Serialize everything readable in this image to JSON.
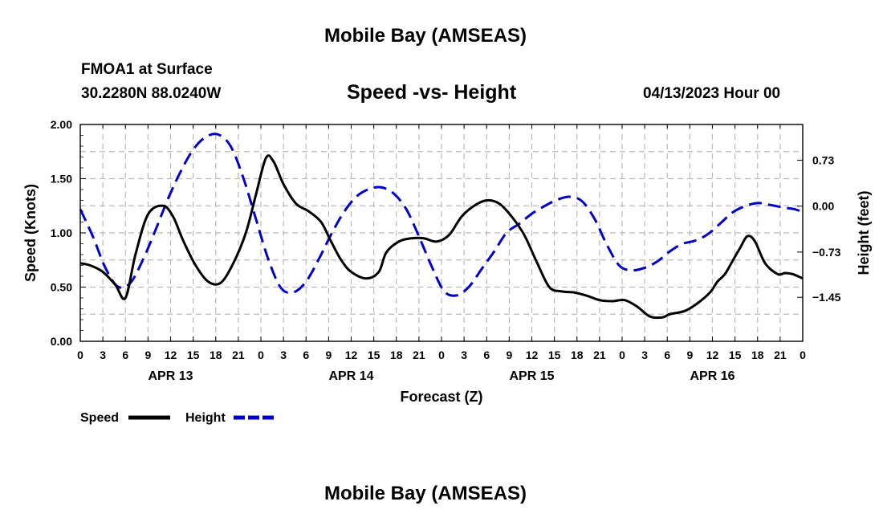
{
  "header": {
    "title": "Mobile Bay (AMSEAS)",
    "station": "FMOA1 at Surface",
    "coords": "30.2280N  88.0240W",
    "chart_title": "Speed -vs- Height",
    "datetime": "04/13/2023 Hour 00"
  },
  "footer": {
    "title": "Mobile Bay (AMSEAS)"
  },
  "colors": {
    "speed": "#000000",
    "height": "#0000cc",
    "grid": "#bbbbbb"
  },
  "chart_data": {
    "type": "line",
    "title": "Speed -vs- Height",
    "xlabel": "Forecast (Z)",
    "ylabel": "Speed (Knots)",
    "y2label": "Height (feet)",
    "xlim": [
      0,
      72
    ],
    "ylim": [
      0,
      2
    ],
    "y2lim": [
      -2.15,
      1.3
    ],
    "x_tick_labels": [
      "0",
      "3",
      "6",
      "9",
      "12",
      "15",
      "18",
      "21",
      "0",
      "3",
      "6",
      "9",
      "12",
      "15",
      "18",
      "21",
      "0",
      "3",
      "6",
      "9",
      "12",
      "15",
      "18",
      "21",
      "0",
      "3",
      "6",
      "9",
      "12",
      "15",
      "18",
      "21",
      "0"
    ],
    "x_tick_step": 2.25,
    "y_ticks": [
      0,
      0.5,
      1.0,
      1.5,
      2.0
    ],
    "y_tick_labels": [
      "0.00",
      "0.50",
      "1.00",
      "1.50",
      "2.00"
    ],
    "y2_ticks": [
      -1.45,
      -0.73,
      0.0,
      0.73
    ],
    "y2_tick_labels": [
      "−1.45",
      "−0.73",
      "0.00",
      "0.73"
    ],
    "date_labels": [
      {
        "label": "APR 13",
        "x": 9
      },
      {
        "label": "APR 14",
        "x": 27
      },
      {
        "label": "APR 15",
        "x": 45
      },
      {
        "label": "APR 16",
        "x": 63
      }
    ],
    "legend": [
      {
        "name": "Speed",
        "style": "solid"
      },
      {
        "name": "Height",
        "style": "dashed"
      }
    ],
    "series": [
      {
        "name": "Speed",
        "axis": "left",
        "unit": "knots",
        "x": [
          0,
          1,
          2.25,
          3.5,
          4.5,
          5.5,
          6.75,
          8.25,
          9.25,
          10.25,
          11.5,
          12.75,
          14,
          15.25,
          16.5,
          17.5,
          18.5,
          19.25,
          20.25,
          21.5,
          22.75,
          24,
          25,
          26,
          27,
          28.5,
          29.75,
          30.5,
          31.75,
          33,
          34.25,
          35.5,
          36.75,
          38,
          39.25,
          40.5,
          41.75,
          43,
          44.25,
          45.5,
          46.75,
          48,
          49.25,
          50.5,
          51.75,
          53,
          54.25,
          55.5,
          56.75,
          58,
          59.25,
          60.5,
          61.75,
          62.75,
          63.5,
          64.25,
          65,
          65.75,
          66.5,
          67.5,
          68.25,
          69.5,
          70.5,
          71.25,
          72
        ],
        "values": [
          0.72,
          0.7,
          0.64,
          0.52,
          0.4,
          0.8,
          1.17,
          1.25,
          1.15,
          0.93,
          0.7,
          0.55,
          0.54,
          0.72,
          1.0,
          1.35,
          1.69,
          1.66,
          1.45,
          1.27,
          1.2,
          1.1,
          0.92,
          0.75,
          0.64,
          0.58,
          0.64,
          0.82,
          0.92,
          0.95,
          0.95,
          0.92,
          0.98,
          1.15,
          1.25,
          1.3,
          1.27,
          1.15,
          0.98,
          0.73,
          0.5,
          0.46,
          0.45,
          0.42,
          0.38,
          0.37,
          0.38,
          0.32,
          0.23,
          0.22,
          0.26,
          0.3,
          0.37,
          0.47,
          0.55,
          0.62,
          0.75,
          0.9,
          0.98,
          0.92,
          0.72,
          0.62,
          0.62,
          0.64,
          0.6
        ],
        "tail_x": [
          58.75,
          60.25,
          61.5,
          62.75,
          63.5,
          64.25,
          65,
          65.75,
          66.5,
          67.25,
          68.25,
          69.5,
          70.25,
          71,
          72
        ],
        "tail_values": [
          0.25,
          0.28,
          0.35,
          0.45,
          0.55,
          0.62,
          0.74,
          0.86,
          0.97,
          0.92,
          0.72,
          0.62,
          0.63,
          0.62,
          0.58
        ]
      },
      {
        "name": "Height",
        "axis": "right",
        "unit": "feet",
        "x": [
          0,
          1.25,
          2.5,
          3.75,
          5,
          6.25,
          7.5,
          8.75,
          10,
          11.25,
          12.5,
          13.75,
          15,
          16.25,
          17.5,
          18.75,
          20,
          21.25,
          22.5,
          23.75,
          25,
          26.25,
          27.5,
          28.75,
          30,
          31.25,
          32.5,
          33.75,
          35,
          36.25,
          37.5,
          38.75,
          40,
          41.25,
          42.5,
          43.75,
          45,
          46.25,
          47.5,
          48.75,
          50,
          51.25,
          52.5,
          53.75,
          55,
          56.25,
          57.5,
          58.75,
          60,
          61.25,
          62.5,
          63.75,
          65,
          66.25,
          67.5,
          68.75,
          70,
          71.25,
          72
        ],
        "values": [
          -0.05,
          -0.48,
          -0.98,
          -1.28,
          -1.22,
          -0.85,
          -0.38,
          0.12,
          0.55,
          0.9,
          1.1,
          1.14,
          0.95,
          0.45,
          -0.2,
          -0.85,
          -1.3,
          -1.37,
          -1.2,
          -0.85,
          -0.45,
          -0.1,
          0.15,
          0.27,
          0.3,
          0.2,
          -0.05,
          -0.48,
          -0.95,
          -1.35,
          -1.42,
          -1.28,
          -1.0,
          -0.72,
          -0.42,
          -0.28,
          -0.12,
          0.0,
          0.1,
          0.15,
          0.08,
          -0.2,
          -0.62,
          -0.95,
          -1.02,
          -0.98,
          -0.88,
          -0.72,
          -0.6,
          -0.55,
          -0.45,
          -0.28,
          -0.1,
          0.0,
          0.05,
          0.02,
          -0.02,
          -0.05,
          -0.1
        ]
      }
    ]
  }
}
